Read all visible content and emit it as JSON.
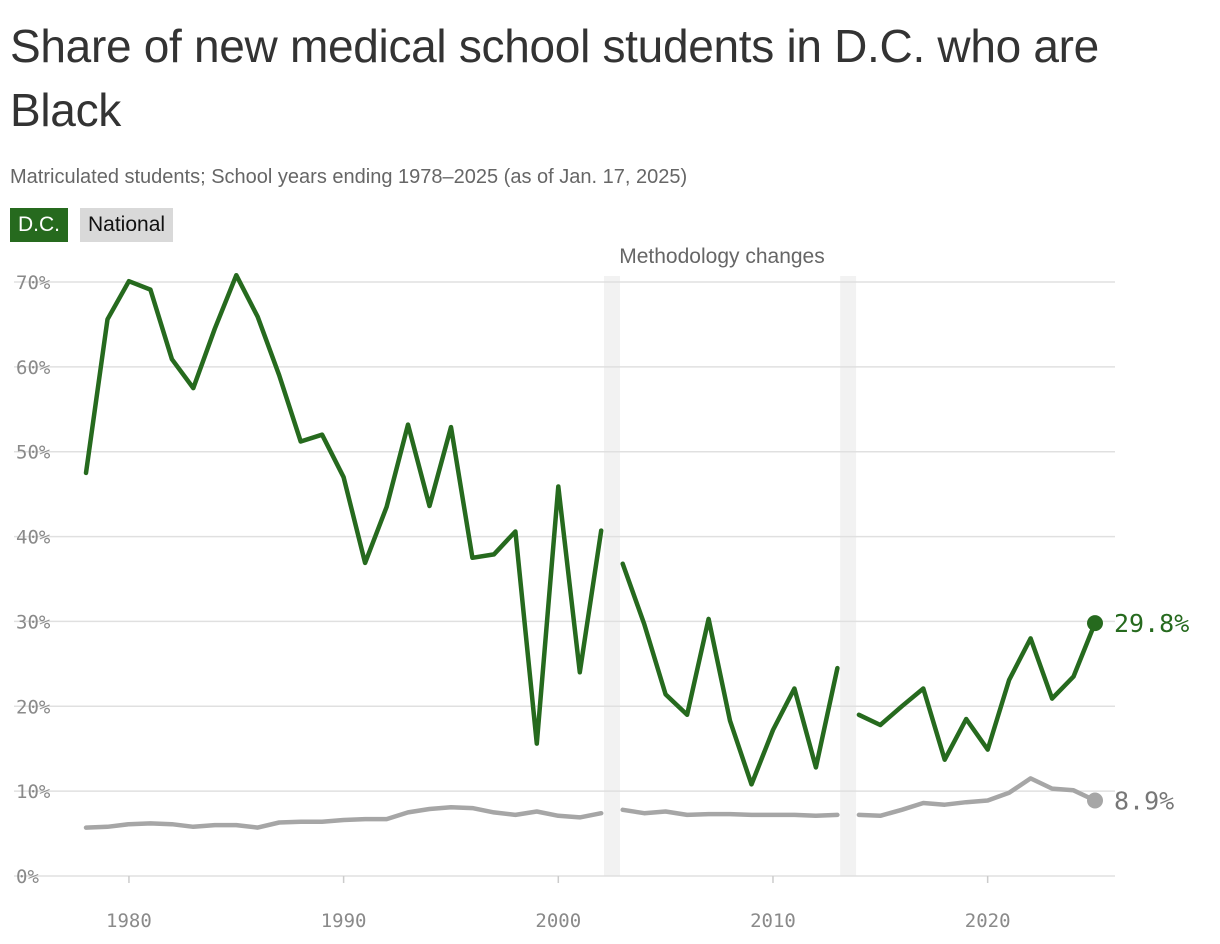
{
  "header": {
    "title": "Share of new medical school students in D.C. who are Black",
    "subtitle": "Matriculated students; School years ending 1978–2025 (as of Jan. 17, 2025)"
  },
  "legend": {
    "dc_label": "D.C.",
    "national_label": "National"
  },
  "annotation": {
    "methodology": "Methodology changes",
    "breaks": [
      2002.5,
      2013.5
    ]
  },
  "colors": {
    "dc": "#266a1e",
    "national": "#a6a6a6",
    "methodology_band": "#f2f2f2",
    "grid": "#e0e0e0"
  },
  "chart_data": {
    "type": "line",
    "title": "Share of new medical school students in D.C. who are Black",
    "xlim": [
      1978,
      2025
    ],
    "ylim": [
      0,
      70
    ],
    "x_ticks": [
      1980,
      1990,
      2000,
      2010,
      2020
    ],
    "x_tick_labels": [
      "1980",
      "1990",
      "2000",
      "2010",
      "2020"
    ],
    "y_ticks": [
      0,
      10,
      20,
      30,
      40,
      50,
      60,
      70
    ],
    "y_tick_labels": [
      "0%",
      "10%",
      "20%",
      "30%",
      "40%",
      "50%",
      "60%",
      "70%"
    ],
    "grid": true,
    "x": [
      1978,
      1979,
      1980,
      1981,
      1982,
      1983,
      1984,
      1985,
      1986,
      1987,
      1988,
      1989,
      1990,
      1991,
      1992,
      1993,
      1994,
      1995,
      1996,
      1997,
      1998,
      1999,
      2000,
      2001,
      2002,
      2003,
      2004,
      2005,
      2006,
      2007,
      2008,
      2009,
      2010,
      2011,
      2012,
      2013,
      2014,
      2015,
      2016,
      2017,
      2018,
      2019,
      2020,
      2021,
      2022,
      2023,
      2024,
      2025
    ],
    "series": [
      {
        "name": "D.C.",
        "end_label": "29.8%",
        "values": [
          47.5,
          65.6,
          70.1,
          69.1,
          60.9,
          57.5,
          64.5,
          70.8,
          65.9,
          59.0,
          51.2,
          52.0,
          47.0,
          36.9,
          43.5,
          53.2,
          43.6,
          52.9,
          37.5,
          37.9,
          40.6,
          15.6,
          45.9,
          24.0,
          40.7,
          36.8,
          29.7,
          21.4,
          19.0,
          30.3,
          18.3,
          10.8,
          17.2,
          22.1,
          12.8,
          24.5,
          19.0,
          17.8,
          20.0,
          22.1,
          13.7,
          18.5,
          14.9,
          23.1,
          28.0,
          20.9,
          23.5,
          29.8
        ]
      },
      {
        "name": "National",
        "end_label": "8.9%",
        "values": [
          5.7,
          5.8,
          6.1,
          6.2,
          6.1,
          5.8,
          6.0,
          6.0,
          5.7,
          6.3,
          6.4,
          6.4,
          6.6,
          6.7,
          6.7,
          7.5,
          7.9,
          8.1,
          8.0,
          7.5,
          7.2,
          7.6,
          7.1,
          6.9,
          7.4,
          7.8,
          7.4,
          7.6,
          7.2,
          7.3,
          7.3,
          7.2,
          7.2,
          7.2,
          7.1,
          7.2,
          7.2,
          7.1,
          7.8,
          8.6,
          8.4,
          8.7,
          8.9,
          9.8,
          11.5,
          10.3,
          10.1,
          8.9
        ]
      }
    ]
  }
}
